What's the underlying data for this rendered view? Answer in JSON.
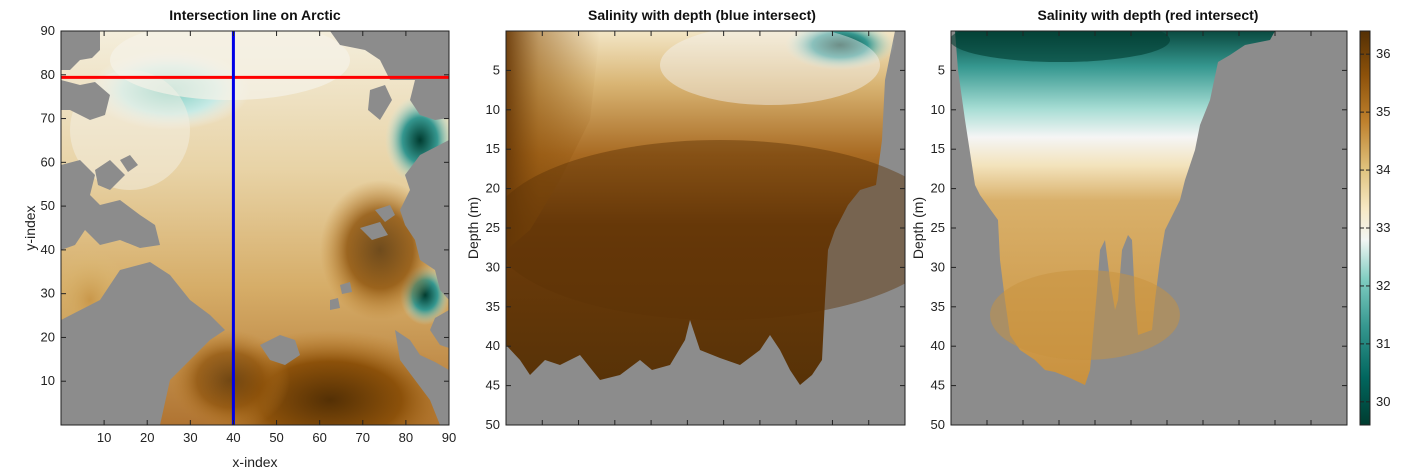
{
  "colors": {
    "land": "#8c8c8c",
    "blue_line": "#0000e6",
    "red_line": "#ff0000",
    "axis": "#222222"
  },
  "colormap": {
    "name": "BrBG (brown-white-teal, reversed)",
    "stops": [
      "#003c30",
      "#35978f",
      "#c7eae5",
      "#f5f5f5",
      "#f6e8c3",
      "#dfc27d",
      "#bf812d",
      "#8c510a",
      "#543005"
    ]
  },
  "chart_data": [
    {
      "type": "heatmap",
      "title": "Intersection line on Arctic",
      "xlabel": "x-index",
      "ylabel": "y-index",
      "xlim": [
        0,
        90
      ],
      "ylim": [
        0,
        90
      ],
      "xticks": [
        10,
        20,
        30,
        40,
        50,
        60,
        70,
        80,
        90
      ],
      "yticks": [
        10,
        20,
        30,
        40,
        50,
        60,
        70,
        80,
        90
      ],
      "intersect_lines": [
        {
          "color": "blue",
          "orientation": "vertical",
          "x": 40
        },
        {
          "color": "red",
          "orientation": "horizontal",
          "y": 79
        }
      ]
    },
    {
      "type": "heatmap",
      "title": "Salinity with depth (blue intersect)",
      "xlabel": "",
      "ylabel": "Depth (m)",
      "ylim": [
        0,
        50
      ],
      "yticks": [
        5,
        10,
        15,
        20,
        25,
        30,
        35,
        40,
        45,
        50
      ],
      "y_reversed": true
    },
    {
      "type": "heatmap",
      "title": "Salinity with depth (red intersect)",
      "xlabel": "",
      "ylabel": "Depth (m)",
      "ylim": [
        0,
        50
      ],
      "yticks": [
        5,
        10,
        15,
        20,
        25,
        30,
        35,
        40,
        45,
        50
      ],
      "y_reversed": true
    }
  ],
  "colorbar": {
    "ticks": [
      "36",
      "35",
      "34",
      "33",
      "32",
      "31",
      "30"
    ],
    "range": [
      29.6,
      36.4
    ]
  }
}
